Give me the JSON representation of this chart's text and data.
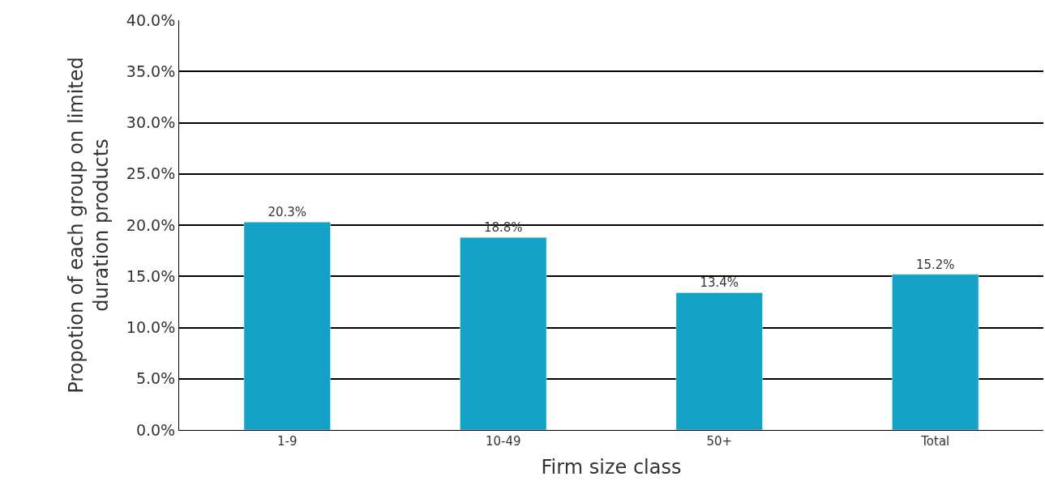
{
  "chart_data": {
    "type": "bar",
    "xlabel": "Firm size class",
    "ylabel": "Propotion of each group on limited duration products",
    "categories": [
      "1-9",
      "10-49",
      "50+",
      "Total"
    ],
    "values": [
      20.3,
      18.8,
      13.4,
      15.2
    ],
    "value_labels": [
      "20.3%",
      "18.8%",
      "13.4%",
      "15.2%"
    ],
    "color": "#14a3c7",
    "ylim": [
      0,
      40
    ],
    "yticks": [
      {
        "value": 0,
        "label": "0.0%"
      },
      {
        "value": 5,
        "label": "5.0%"
      },
      {
        "value": 10,
        "label": "10.0%"
      },
      {
        "value": 15,
        "label": "15.0%"
      },
      {
        "value": 20,
        "label": "20.0%"
      },
      {
        "value": 25,
        "label": "25.0%"
      },
      {
        "value": 30,
        "label": "30.0%"
      },
      {
        "value": 35,
        "label": "35.0%"
      },
      {
        "value": 40,
        "label": "40.0%"
      }
    ],
    "grid": "y"
  }
}
